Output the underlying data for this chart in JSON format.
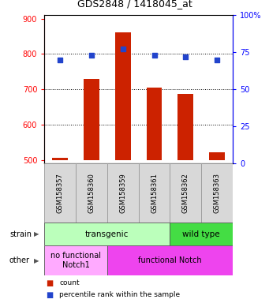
{
  "title": "GDS2848 / 1418045_at",
  "samples": [
    "GSM158357",
    "GSM158360",
    "GSM158359",
    "GSM158361",
    "GSM158362",
    "GSM158363"
  ],
  "counts": [
    507,
    730,
    862,
    706,
    688,
    522
  ],
  "percentiles": [
    70,
    73,
    77,
    73,
    72,
    70
  ],
  "ylim_left": [
    490,
    910
  ],
  "ylim_right": [
    0,
    100
  ],
  "yticks_left": [
    500,
    600,
    700,
    800,
    900
  ],
  "yticks_right": [
    0,
    25,
    50,
    75,
    100
  ],
  "bar_color": "#cc2200",
  "dot_color": "#2244cc",
  "bar_bottom": 500,
  "strain_transgenic_color": "#bbffbb",
  "strain_wildtype_color": "#44dd44",
  "other_nofunc_color": "#ffaaff",
  "other_func_color": "#ee44ee",
  "transgenic_cols": 4,
  "nofunc_cols": 2,
  "bg_color": "#ffffff"
}
